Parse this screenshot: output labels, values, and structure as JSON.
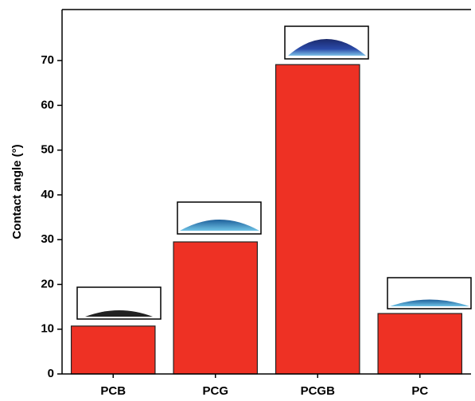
{
  "chart_data": {
    "type": "bar",
    "y_label": "Contact angle (°)",
    "categories": [
      "PCB",
      "PCG",
      "PCGB",
      "PC"
    ],
    "values": [
      10.7,
      29.5,
      69.1,
      13.5
    ],
    "color": "#ee3124",
    "ylim": [
      0,
      81.4
    ],
    "yticks": [
      0,
      10,
      20,
      30,
      40,
      50,
      60,
      70
    ],
    "grid": false
  }
}
